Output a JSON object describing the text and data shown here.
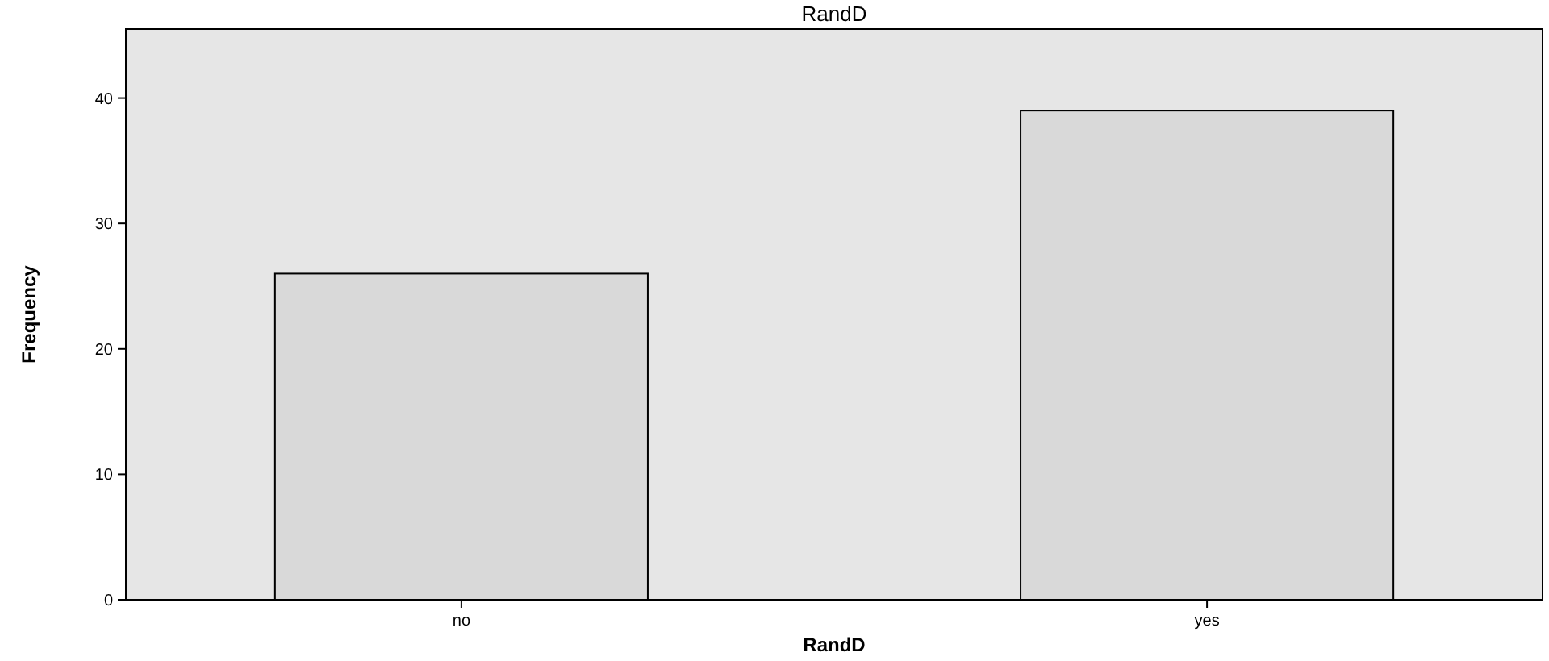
{
  "chart_data": {
    "type": "bar",
    "title": "RandD",
    "xlabel": "RandD",
    "ylabel": "Frequency",
    "categories": [
      "no",
      "yes"
    ],
    "values": [
      26,
      39
    ],
    "color": "#d9d9d9",
    "ylim": [
      0,
      45.5
    ],
    "yticks": [
      0,
      10,
      20,
      30,
      40
    ],
    "grid": false
  }
}
